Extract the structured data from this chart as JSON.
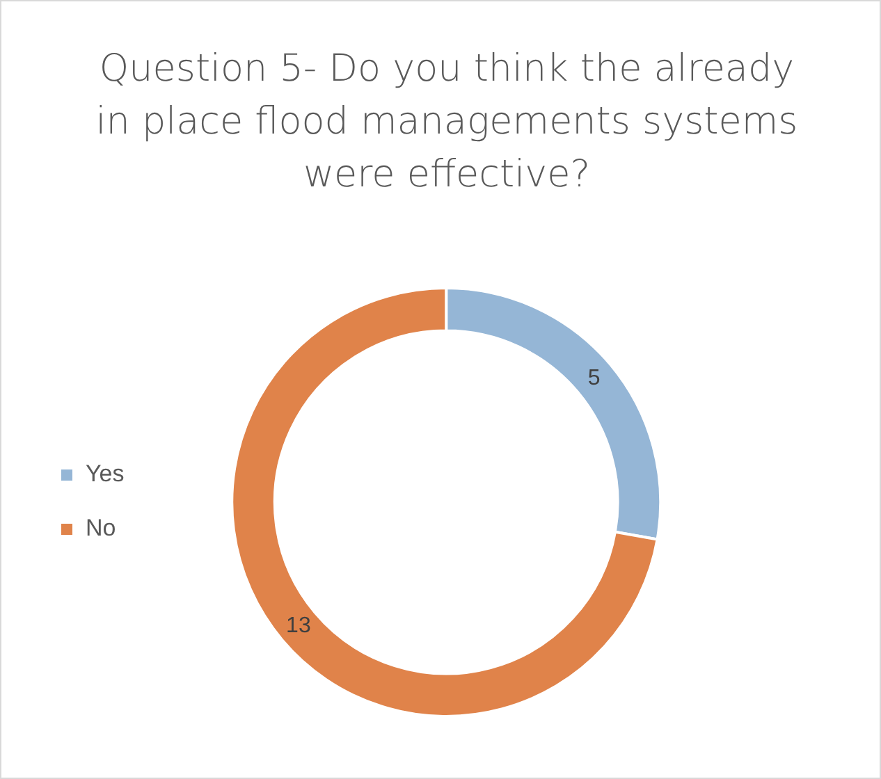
{
  "chart_data": {
    "type": "donut",
    "title": "Question 5- Do you think the already in place flood managements systems were effective?",
    "categories": [
      "Yes",
      "No"
    ],
    "values": [
      5,
      13
    ],
    "colors": [
      "#95b6d6",
      "#e0834a"
    ],
    "data_labels": true,
    "legend": "left"
  }
}
